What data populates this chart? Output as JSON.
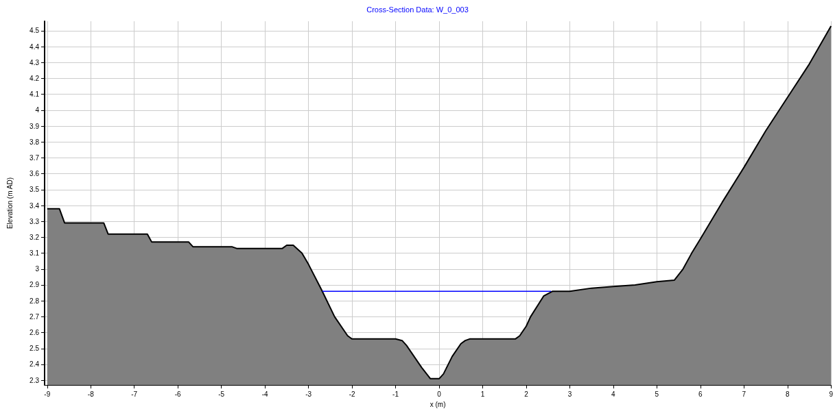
{
  "chart_data": {
    "type": "area",
    "title": "Cross-Section Data: W_0_003",
    "xlabel": "x (m)",
    "ylabel": "Elevation (m AD)",
    "xlim": [
      -9.06,
      9
    ],
    "ylim": [
      2.27,
      4.56
    ],
    "xticks": [
      -9,
      -8,
      -7,
      -6,
      -5,
      -4,
      -3,
      -2,
      -1,
      0,
      1,
      2,
      3,
      4,
      5,
      6,
      7,
      8,
      9
    ],
    "yticks": [
      2.3,
      2.4,
      2.5,
      2.6,
      2.7,
      2.8,
      2.9,
      3,
      3.1,
      3.2,
      3.3,
      3.4,
      3.5,
      3.6,
      3.7,
      3.8,
      3.9,
      4,
      4.1,
      4.2,
      4.3,
      4.4,
      4.5
    ],
    "grid": true,
    "series": [
      {
        "color": "#808080",
        "x": [
          -9,
          -8.72,
          -8.6,
          -7.7,
          -7.6,
          -6.7,
          -6.6,
          -5.75,
          -5.65,
          -4.75,
          -4.65,
          -3.6,
          -3.5,
          -3.35,
          -3.15,
          -3.0,
          -2.7,
          -2.4,
          -2.1,
          -2.0,
          -1.0,
          -0.85,
          -0.75,
          -0.4,
          -0.2,
          0,
          0.1,
          0.3,
          0.5,
          0.6,
          0.7,
          1.75,
          1.85,
          2.0,
          2.1,
          2.4,
          2.6,
          3.0,
          3.5,
          4.0,
          4.5,
          5.0,
          5.4,
          5.6,
          5.8,
          6.0,
          6.5,
          7.0,
          7.5,
          8.0,
          8.5,
          9.0
        ],
        "values": [
          3.38,
          3.38,
          3.29,
          3.29,
          3.22,
          3.22,
          3.17,
          3.17,
          3.14,
          3.14,
          3.13,
          3.13,
          3.15,
          3.15,
          3.1,
          3.03,
          2.87,
          2.7,
          2.58,
          2.56,
          2.56,
          2.55,
          2.52,
          2.38,
          2.31,
          2.31,
          2.34,
          2.45,
          2.53,
          2.55,
          2.56,
          2.56,
          2.58,
          2.64,
          2.7,
          2.83,
          2.86,
          2.86,
          2.88,
          2.89,
          2.9,
          2.92,
          2.93,
          3.0,
          3.1,
          3.19,
          3.42,
          3.64,
          3.87,
          4.08,
          4.29,
          4.53
        ]
      },
      {
        "type": "line",
        "color": "#0000ff",
        "x": [
          -2.68,
          -1,
          0,
          1,
          2.57
        ],
        "values": [
          2.86,
          2.86,
          2.86,
          2.86,
          2.86
        ]
      }
    ]
  }
}
